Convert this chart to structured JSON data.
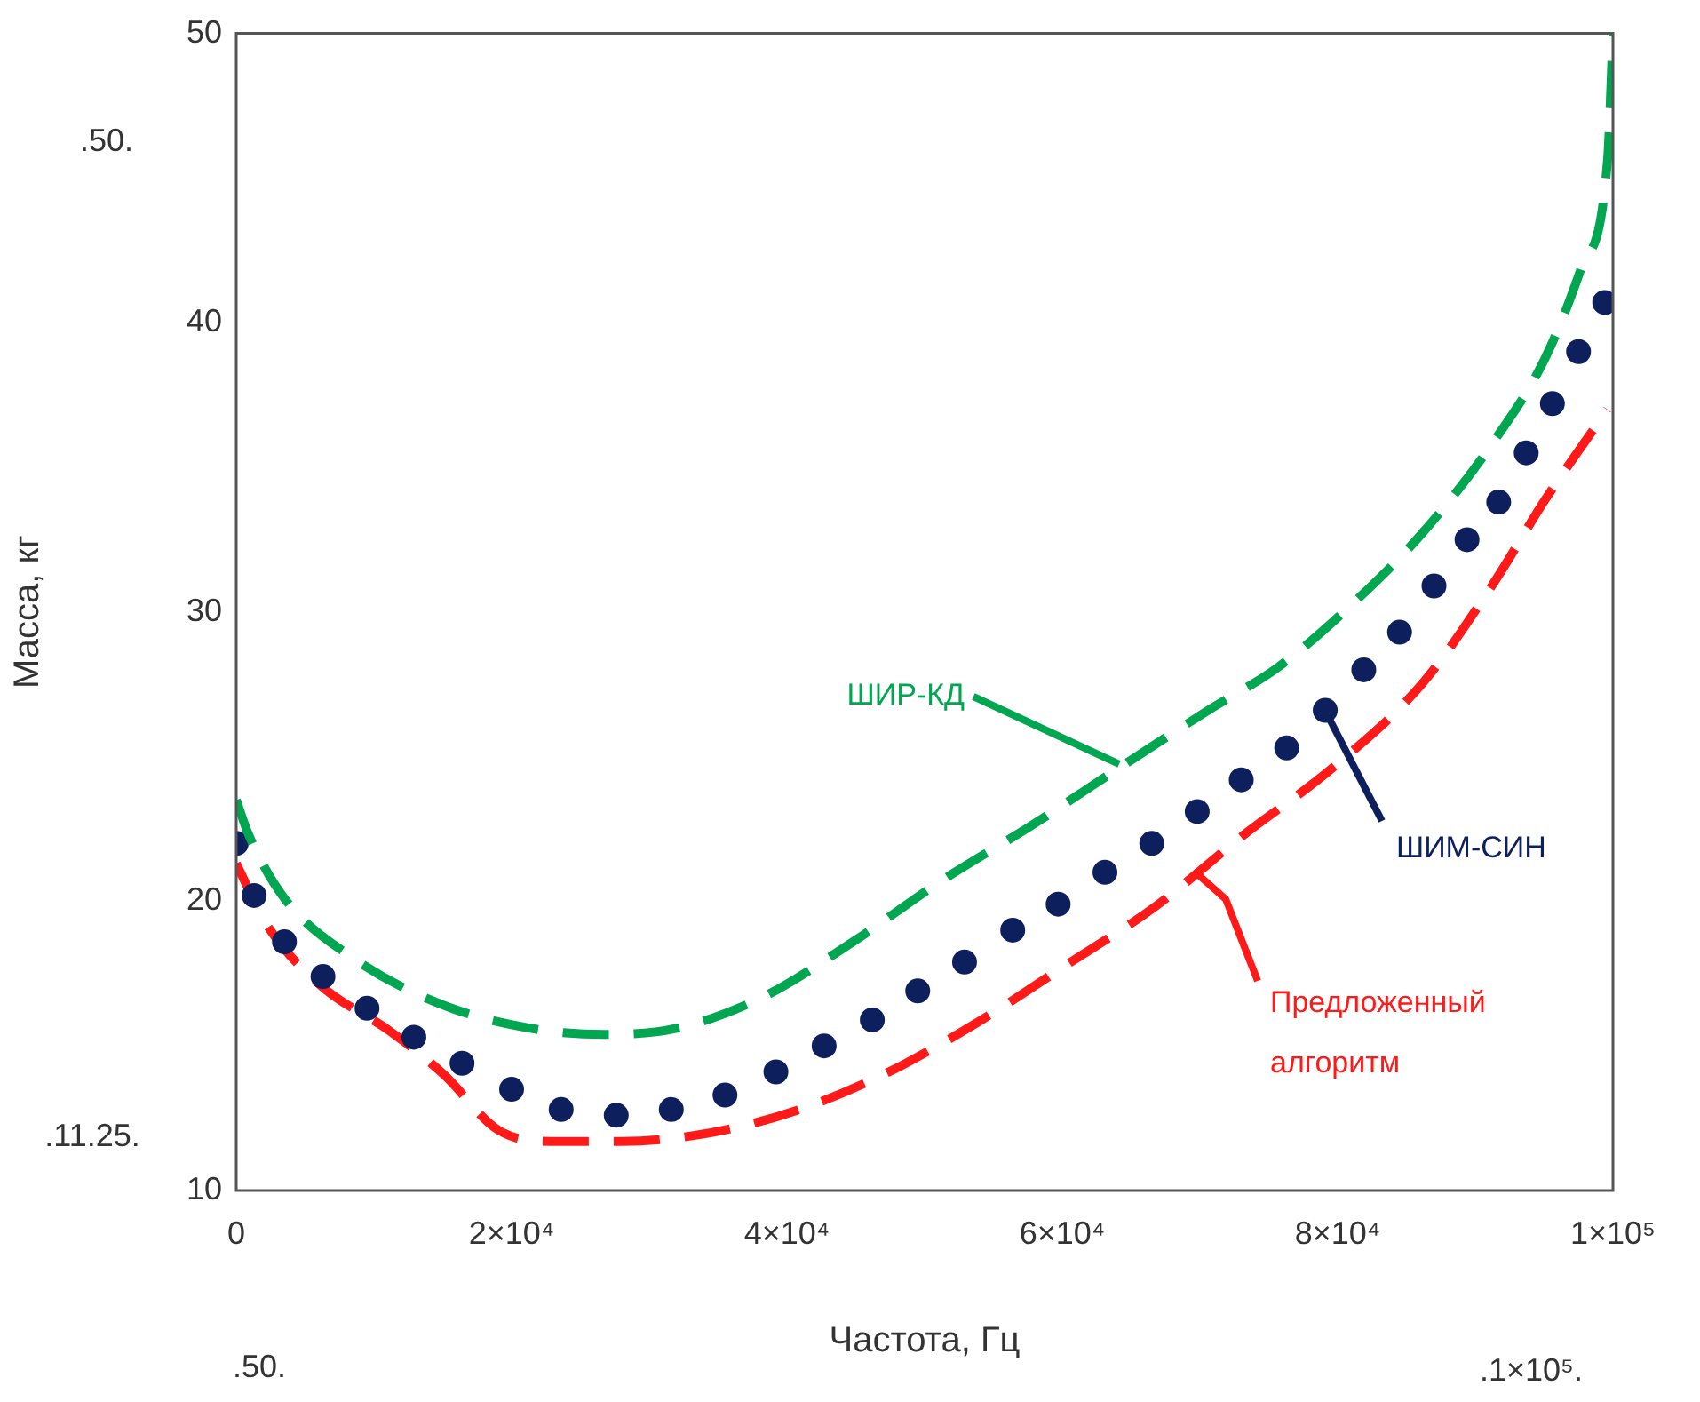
{
  "chart_data": {
    "type": "line",
    "xlabel": "Частота, Гц",
    "ylabel": "Масса, кг",
    "xlim": [
      0,
      100000
    ],
    "ylim": [
      10,
      50
    ],
    "xticks": [
      0,
      {
        "value": 20000,
        "label": "2×10⁴"
      },
      {
        "value": 40000,
        "label": "4×10⁴"
      },
      {
        "value": 60000,
        "label": "6×10⁴"
      },
      {
        "value": 80000,
        "label": "8×10⁴"
      },
      {
        "value": 100000,
        "label": "1×10⁵"
      }
    ],
    "yticks": [
      10,
      20,
      30,
      40,
      50
    ],
    "grid": false,
    "legend": false,
    "annotations": [
      ".50.",
      ".11.25.",
      ".50.",
      ".1×10⁵."
    ],
    "series": [
      {
        "name": "ШИР-КД",
        "color": "#00a650",
        "type": "line",
        "marker": "none",
        "line_style": "dashed",
        "x": [
          0,
          900,
          3500,
          8600,
          15100,
          21500,
          26700,
          31900,
          38300,
          44800,
          51200,
          57700,
          64100,
          70600,
          75700,
          80900,
          86100,
          91200,
          95100,
          97700,
          99600,
          100000
        ],
        "values": [
          23.5,
          22.3,
          20.1,
          18,
          16.4,
          15.6,
          15.4,
          15.6,
          16.7,
          18.6,
          20.7,
          22.6,
          24.6,
          26.6,
          28.1,
          30.2,
          32.7,
          35.8,
          38.8,
          41.9,
          45.6,
          50
        ]
      },
      {
        "name": "ШИМ-СИН",
        "color": "#0d1f5c",
        "type": "scatter",
        "marker": "circle",
        "x": [
          0,
          1300,
          3500,
          6300,
          9500,
          12900,
          16400,
          20000,
          23600,
          27600,
          31600,
          35500,
          39200,
          42700,
          46200,
          49500,
          52900,
          56400,
          59700,
          63100,
          66500,
          69800,
          73000,
          76300,
          79100,
          81900,
          84500,
          87000,
          89400,
          91700,
          93700,
          95600,
          97500,
          99400
        ],
        "values": [
          22,
          20.2,
          18.6,
          17.4,
          16.3,
          15.3,
          14.4,
          13.5,
          12.8,
          12.6,
          12.8,
          13.3,
          14.1,
          15,
          15.9,
          16.9,
          17.9,
          19,
          19.9,
          21,
          22,
          23.1,
          24.2,
          25.3,
          26.6,
          28,
          29.3,
          30.9,
          32.5,
          33.8,
          35.5,
          37.2,
          39,
          40.7
        ]
      },
      {
        "name": "Предложенный алгоритм",
        "color": "#ff1a1a",
        "type": "line",
        "marker": "none",
        "line_style": "dashed",
        "x": [
          0,
          2200,
          6100,
          11200,
          15100,
          19000,
          22800,
          28000,
          34500,
          40900,
          47400,
          53800,
          60300,
          66700,
          73200,
          79600,
          86100,
          91200,
          95100,
          99600
        ],
        "values": [
          21.3,
          19.2,
          17.1,
          15.5,
          14,
          12.1,
          11.7,
          11.7,
          12,
          12.8,
          14.1,
          15.8,
          17.8,
          19.8,
          22.3,
          24.6,
          27.5,
          30.9,
          33.9,
          37
        ]
      }
    ]
  }
}
